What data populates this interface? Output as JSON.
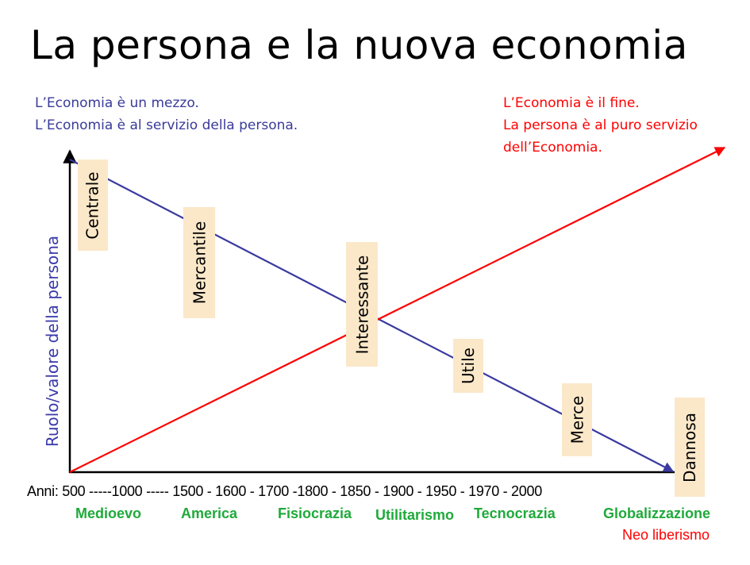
{
  "title": "La persona e la nuova economia",
  "left_note": [
    "L’Economia è un mezzo.",
    "L’Economia è al servizio della persona."
  ],
  "right_note": [
    "L’Economia è il fine.",
    "La persona è al puro servizio",
    "dell’Economia."
  ],
  "y_axis_label": "Ruolo/valore della persona",
  "stages": [
    "Centrale",
    "Mercantile",
    "Interessante",
    "Utile",
    "Merce",
    "Dannosa"
  ],
  "timeline": "Anni: 500 -----1000 ----- 1500  - 1600 - 1700 -1800 - 1850 - 1900 - 1950 - 1970 - 2000",
  "eras": [
    "Medioevo",
    "America",
    "Fisiocrazia",
    "Utilitarismo",
    "Tecnocrazia",
    "Globalizzazione"
  ],
  "era_extra": "Neo liberismo",
  "colors": {
    "person_line": "#3a3aa0",
    "economy_line": "#ff0000",
    "era_text": "#1faa3a",
    "stage_box": "#fbe8c9"
  }
}
